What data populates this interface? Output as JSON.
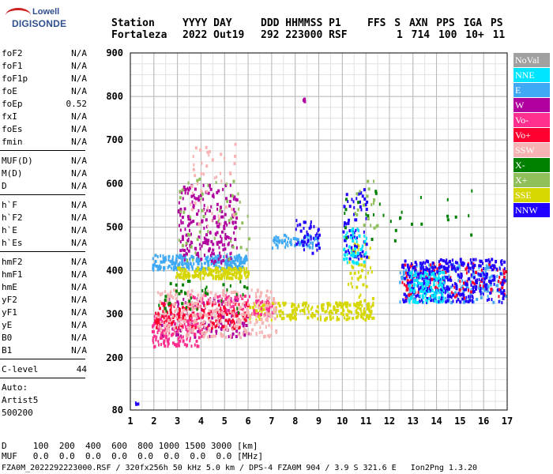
{
  "logo": {
    "top": "Lowell",
    "bottom": "DIGISONDE"
  },
  "header": {
    "labels": [
      "Station",
      "YYYY DAY",
      "DDD HHMMSS P1",
      "FFS S AXN PPS IGA PS"
    ],
    "values": [
      "Fortaleza",
      "2022 Out19",
      "292 223000 RSF",
      "1 714 100 10+ 11"
    ]
  },
  "params": [
    {
      "k": "foF2",
      "v": "N/A"
    },
    {
      "k": "foF1",
      "v": "N/A"
    },
    {
      "k": "foF1p",
      "v": "N/A"
    },
    {
      "k": "foE",
      "v": "N/A"
    },
    {
      "k": "foEp",
      "v": "0.52"
    },
    {
      "k": "fxI",
      "v": "N/A"
    },
    {
      "k": "foEs",
      "v": "N/A"
    },
    {
      "k": "fmin",
      "v": "N/A"
    },
    {
      "k": "MUF(D)",
      "v": "N/A"
    },
    {
      "k": "M(D)",
      "v": "N/A"
    },
    {
      "k": "D",
      "v": "N/A"
    },
    {
      "k": "h`F",
      "v": "N/A"
    },
    {
      "k": "h`F2",
      "v": "N/A"
    },
    {
      "k": "h`E",
      "v": "N/A"
    },
    {
      "k": "h`Es",
      "v": "N/A"
    },
    {
      "k": "hmF2",
      "v": "N/A"
    },
    {
      "k": "hmF1",
      "v": "N/A"
    },
    {
      "k": "hmE",
      "v": "N/A"
    },
    {
      "k": "yF2",
      "v": "N/A"
    },
    {
      "k": "yF1",
      "v": "N/A"
    },
    {
      "k": "yE",
      "v": "N/A"
    },
    {
      "k": "B0",
      "v": "N/A"
    },
    {
      "k": "B1",
      "v": "N/A"
    },
    {
      "k": "C-level",
      "v": "44"
    }
  ],
  "auto": [
    "Auto:",
    "Artist5",
    "500200"
  ],
  "legend": [
    {
      "label": "NoVal",
      "color": "#a0a0a0"
    },
    {
      "label": "NNE",
      "color": "#00e5ff"
    },
    {
      "label": "E",
      "color": "#3fa9f5"
    },
    {
      "label": "W",
      "color": "#b0009e"
    },
    {
      "label": "Vo-",
      "color": "#ff2f8f"
    },
    {
      "label": "Vo+",
      "color": "#ff0030"
    },
    {
      "label": "SSW",
      "color": "#f7b3b3"
    },
    {
      "label": "X-",
      "color": "#008000"
    },
    {
      "label": "X+",
      "color": "#8fbf5a"
    },
    {
      "label": "SSE",
      "color": "#d6d600"
    },
    {
      "label": "NNW",
      "color": "#2000ff"
    }
  ],
  "footer": [
    "D     100  200  400  600  800 1000 1500 3000 [km]",
    "MUF   0.0  0.0  0.0  0.0  0.0  0.0  0.0  0.0 [MHz]",
    "FZA0M_2022292223000.RSF / 320fx256h 50 kHz 5.0 km / DPS-4 FZA0M 904 / 3.9 S 321.6 E   Ion2Png 1.3.20"
  ],
  "chart_data": {
    "type": "scatter",
    "title": "",
    "xlabel": "",
    "ylabel": "",
    "xlim": [
      1,
      17
    ],
    "ylim": [
      80,
      900
    ],
    "x_ticks": [
      1,
      2,
      3,
      4,
      5,
      6,
      7,
      8,
      9,
      10,
      11,
      12,
      13,
      14,
      15,
      16,
      17
    ],
    "y_ticks": [
      80,
      200,
      300,
      400,
      500,
      600,
      700,
      800,
      900
    ],
    "grid": true,
    "legend_position": "right",
    "series": [
      {
        "name": "E",
        "color": "#3fa9f5",
        "clusters": [
          {
            "x": [
              1.9,
              5.9
            ],
            "y": [
              405,
              440
            ],
            "n": 260
          },
          {
            "x": [
              7.0,
              9.0
            ],
            "y": [
              455,
              485
            ],
            "n": 60
          },
          {
            "x": [
              12.4,
              16.9
            ],
            "y": [
              330,
              420
            ],
            "n": 200
          }
        ]
      },
      {
        "name": "SSE",
        "color": "#d6d600",
        "clusters": [
          {
            "x": [
              2.9,
              6.0
            ],
            "y": [
              385,
              410
            ],
            "n": 180
          },
          {
            "x": [
              6.0,
              11.3
            ],
            "y": [
              290,
              330
            ],
            "n": 220
          },
          {
            "x": [
              10.2,
              11.3
            ],
            "y": [
              300,
              470
            ],
            "n": 60
          }
        ]
      },
      {
        "name": "W",
        "color": "#b0009e",
        "clusters": [
          {
            "x": [
              3.0,
              5.5
            ],
            "y": [
              420,
              600
            ],
            "n": 220
          },
          {
            "x": [
              2.2,
              6.0
            ],
            "y": [
              250,
              340
            ],
            "n": 120
          },
          {
            "x": [
              8.0,
              8.5
            ],
            "y": [
              788,
              800
            ],
            "n": 4
          }
        ]
      },
      {
        "name": "Vo-",
        "color": "#ff2f8f",
        "clusters": [
          {
            "x": [
              1.9,
              4.0
            ],
            "y": [
              228,
              300
            ],
            "n": 160
          },
          {
            "x": [
              3.5,
              7.0
            ],
            "y": [
              300,
              350
            ],
            "n": 100
          }
        ]
      },
      {
        "name": "Vo+",
        "color": "#ff0030",
        "clusters": [
          {
            "x": [
              2.0,
              6.0
            ],
            "y": [
              270,
              330
            ],
            "n": 170
          },
          {
            "x": [
              12.5,
              16.9
            ],
            "y": [
              340,
              420
            ],
            "n": 120
          }
        ]
      },
      {
        "name": "SSW",
        "color": "#f7b3b3",
        "clusters": [
          {
            "x": [
              2.1,
              7.2
            ],
            "y": [
              250,
              360
            ],
            "n": 320
          },
          {
            "x": [
              3.5,
              5.5
            ],
            "y": [
              500,
              700
            ],
            "n": 50
          }
        ]
      },
      {
        "name": "NNW",
        "color": "#2000ff",
        "clusters": [
          {
            "x": [
              12.5,
              16.9
            ],
            "y": [
              330,
              430
            ],
            "n": 340
          },
          {
            "x": [
              10.0,
              11.0
            ],
            "y": [
              430,
              590
            ],
            "n": 70
          },
          {
            "x": [
              8.0,
              9.0
            ],
            "y": [
              440,
              520
            ],
            "n": 40
          },
          {
            "x": [
              1.1,
              1.3
            ],
            "y": [
              95,
              100
            ],
            "n": 3
          }
        ]
      },
      {
        "name": "NNE",
        "color": "#00e5ff",
        "clusters": [
          {
            "x": [
              12.8,
              14.3
            ],
            "y": [
              330,
              400
            ],
            "n": 110
          },
          {
            "x": [
              10.0,
              11.0
            ],
            "y": [
              420,
              500
            ],
            "n": 50
          }
        ]
      },
      {
        "name": "X-",
        "color": "#008000",
        "clusters": [
          {
            "x": [
              2.0,
              6.0
            ],
            "y": [
              300,
              380
            ],
            "n": 40
          },
          {
            "x": [
              10.0,
              15.5
            ],
            "y": [
              470,
              600
            ],
            "n": 30
          }
        ]
      },
      {
        "name": "X+",
        "color": "#8fbf5a",
        "clusters": [
          {
            "x": [
              3.0,
              6.0
            ],
            "y": [
              420,
              620
            ],
            "n": 50
          },
          {
            "x": [
              10.5,
              11.5
            ],
            "y": [
              500,
              610
            ],
            "n": 20
          }
        ]
      }
    ]
  }
}
